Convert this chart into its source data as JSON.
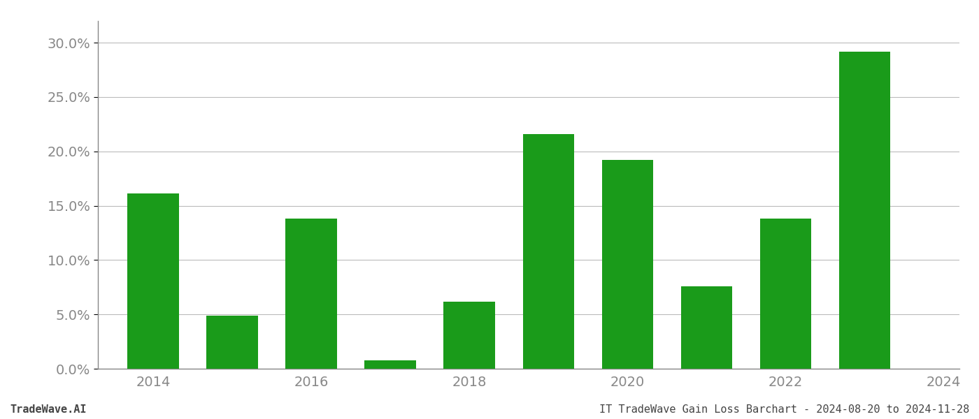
{
  "years": [
    2014,
    2015,
    2016,
    2017,
    2018,
    2019,
    2020,
    2021,
    2022,
    2023
  ],
  "values": [
    0.161,
    0.049,
    0.138,
    0.008,
    0.062,
    0.216,
    0.192,
    0.076,
    0.138,
    0.292
  ],
  "bar_color": "#1a9b1a",
  "ylim": [
    0,
    0.32
  ],
  "yticks": [
    0.0,
    0.05,
    0.1,
    0.15,
    0.2,
    0.25,
    0.3
  ],
  "xlabel": "",
  "ylabel": "",
  "footer_left": "TradeWave.AI",
  "footer_right": "IT TradeWave Gain Loss Barchart - 2024-08-20 to 2024-11-28",
  "background_color": "#ffffff",
  "grid_color": "#bbbbbb",
  "bar_width": 0.65,
  "even_years": [
    2014,
    2016,
    2018,
    2020,
    2022,
    2024
  ],
  "tick_fontsize": 14,
  "footer_fontsize": 11
}
